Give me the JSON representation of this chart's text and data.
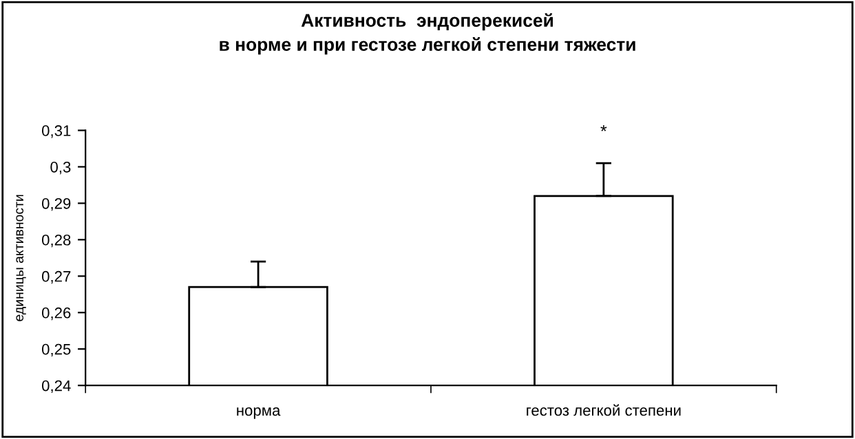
{
  "chart_data": {
    "type": "bar",
    "title": "Активность  эндоперекисей\nв норме и при гестозе легкой степени тяжести",
    "ylabel": "единицы активности",
    "categories": [
      "норма",
      "гестоз легкой степени"
    ],
    "values": [
      0.267,
      0.292
    ],
    "errors": [
      [
        0.267,
        0.274
      ],
      [
        0.292,
        0.301
      ]
    ],
    "color": "#ffffff",
    "ylim": [
      0.24,
      0.31
    ],
    "yticks": [
      {
        "value": 0.24,
        "label": "0,24"
      },
      {
        "value": 0.25,
        "label": "0,25"
      },
      {
        "value": 0.26,
        "label": "0,26"
      },
      {
        "value": 0.27,
        "label": "0,27"
      },
      {
        "value": 0.28,
        "label": "0,28"
      },
      {
        "value": 0.29,
        "label": "0,29"
      },
      {
        "value": 0.3,
        "label": "0,3"
      },
      {
        "value": 0.31,
        "label": "0,31"
      }
    ],
    "annotations": [
      "*"
    ],
    "grid": false
  }
}
